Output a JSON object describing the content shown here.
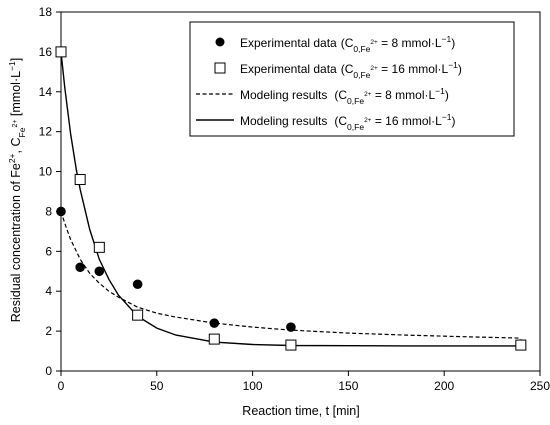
{
  "chart_data": {
    "type": "scatter",
    "xlabel": "Reaction time, t [min]",
    "ylabel": {
      "prefix": "Residual concentration of  Fe",
      "sup1": "2+",
      "mid": ", C",
      "sub": "Fe",
      "subsup": "2+",
      "suffix": "  [mmol·L",
      "unitsup": "−1",
      "end": "]"
    },
    "xlim": [
      0,
      250
    ],
    "ylim": [
      0,
      18
    ],
    "xticks": [
      "0",
      "50",
      "100",
      "150",
      "200",
      "250"
    ],
    "yticks": [
      "0",
      "2",
      "4",
      "6",
      "8",
      "10",
      "12",
      "14",
      "16",
      "18"
    ],
    "grid": false,
    "legend_position": "top-right",
    "series": [
      {
        "label": "Experimental data",
        "conc_prefix": "(C",
        "conc_sub": "0,Fe",
        "conc_subsup": "2+",
        "conc_value": " =  8 mmol·L",
        "conc_sup": "−1",
        "conc_end": ")",
        "kind": "points",
        "marker": "filled-circle",
        "color": "#000000",
        "x": [
          0,
          10,
          20,
          40,
          80,
          120,
          240
        ],
        "y": [
          8.0,
          5.2,
          5.0,
          4.35,
          2.4,
          2.2,
          1.35
        ]
      },
      {
        "label": "Experimental data",
        "conc_prefix": "(C",
        "conc_sub": "0,Fe",
        "conc_subsup": "2+",
        "conc_value": " = 16 mmol·L",
        "conc_sup": "−1",
        "conc_end": ")",
        "kind": "points",
        "marker": "open-square",
        "color": "#000000",
        "x": [
          0,
          10,
          20,
          40,
          80,
          120,
          240
        ],
        "y": [
          16.0,
          9.6,
          6.2,
          2.8,
          1.6,
          1.3,
          1.3
        ]
      },
      {
        "label": "Modeling results",
        "conc_prefix": "(C",
        "conc_sub": "0,Fe",
        "conc_subsup": "2+",
        "conc_value": " =  8 mmol·L",
        "conc_sup": "−1",
        "conc_end": ")",
        "kind": "line",
        "line_style": "dashed",
        "color": "#000000",
        "x": [
          0,
          2,
          5,
          10,
          15,
          20,
          25,
          30,
          40,
          50,
          60,
          80,
          100,
          120,
          150,
          180,
          210,
          240
        ],
        "y": [
          8.0,
          7.4,
          6.6,
          5.6,
          4.9,
          4.4,
          4.0,
          3.7,
          3.2,
          2.9,
          2.7,
          2.4,
          2.2,
          2.05,
          1.9,
          1.8,
          1.72,
          1.65
        ]
      },
      {
        "label": "Modeling results",
        "conc_prefix": "(C",
        "conc_sub": "0,Fe",
        "conc_subsup": "2+",
        "conc_value": " = 16 mmol·L",
        "conc_sup": "−1",
        "conc_end": ")",
        "kind": "line",
        "line_style": "solid",
        "color": "#000000",
        "x": [
          0,
          2,
          5,
          8,
          10,
          15,
          20,
          25,
          30,
          40,
          50,
          60,
          80,
          100,
          120,
          150,
          180,
          210,
          240
        ],
        "y": [
          16.0,
          14.2,
          11.9,
          10.1,
          9.1,
          7.1,
          5.6,
          4.6,
          3.8,
          2.75,
          2.15,
          1.8,
          1.45,
          1.33,
          1.28,
          1.27,
          1.26,
          1.26,
          1.26
        ]
      }
    ]
  }
}
